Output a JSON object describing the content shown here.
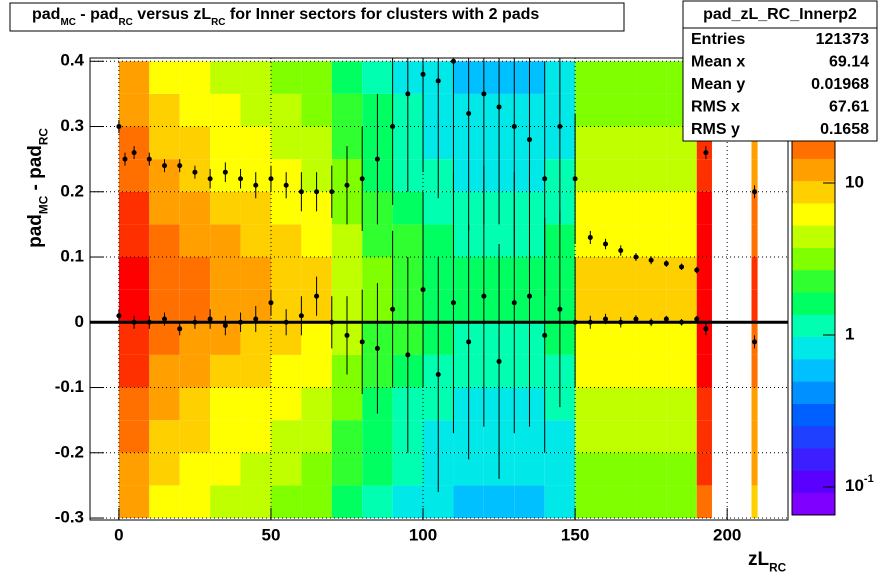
{
  "chart_data": {
    "type": "heatmap2d",
    "title_parts": [
      "pad",
      "MC",
      " - pad",
      "RC",
      " versus zL",
      "RC",
      " for Inner sectors for clusters with 2 pads"
    ],
    "x_label_parts": [
      "zL",
      "RC"
    ],
    "y_label_parts": [
      "pad",
      "MC",
      " - pad",
      "RC"
    ],
    "xlim": [
      -9.5,
      220
    ],
    "ylim": [
      -0.303,
      0.405
    ],
    "xticks": [
      0,
      50,
      100,
      150,
      200
    ],
    "yticks": [
      -0.3,
      -0.2,
      -0.1,
      0,
      0.1,
      0.2,
      0.3,
      0.4
    ],
    "grid": true,
    "hline": 0,
    "zlog": true,
    "zlim": [
      0.0655,
      40
    ],
    "zticks": [
      {
        "value": 0.1,
        "label": "10",
        "exponent": "-1"
      },
      1,
      10
    ],
    "palette": [
      "#8000ff",
      "#5a00ff",
      "#3c1eff",
      "#2040ff",
      "#0060ff",
      "#0090ff",
      "#00c0ff",
      "#00e8e8",
      "#00ffb0",
      "#00ff60",
      "#30ff30",
      "#80ff00",
      "#c0ff00",
      "#ffff00",
      "#ffd000",
      "#ffa000",
      "#ff7000",
      "#ff3000",
      "#ff0000"
    ],
    "x_edges": [
      0,
      10,
      20,
      30,
      40,
      50,
      60,
      70,
      80,
      90,
      100,
      110,
      120,
      130,
      140,
      150,
      160,
      170,
      180,
      190,
      195,
      208,
      210
    ],
    "y_edges": [
      -0.3,
      -0.25,
      -0.2,
      -0.15,
      -0.1,
      -0.05,
      0,
      0.05,
      0.1,
      0.15,
      0.2,
      0.25,
      0.3,
      0.35,
      0.4
    ],
    "z": [
      [
        12,
        14,
        16,
        18,
        22,
        26,
        30,
        30,
        26,
        22,
        18,
        16,
        14,
        12
      ],
      [
        7.2,
        8.4,
        9.6,
        10.8,
        13.2,
        15.6,
        18,
        18,
        15.6,
        13.2,
        10.8,
        9.6,
        8.4,
        7.2
      ],
      [
        6,
        7,
        8,
        9,
        11,
        13,
        15,
        15,
        13,
        11,
        9,
        8,
        7,
        6
      ],
      [
        4.8,
        5.6,
        6.4,
        7.2,
        8.8,
        10.4,
        12,
        12,
        10.4,
        8.8,
        7.2,
        6.4,
        5.6,
        4.8
      ],
      [
        4.2,
        4.9,
        5.6,
        6.3,
        7.7,
        9.1,
        10.5,
        10.5,
        9.1,
        7.7,
        6.3,
        5.6,
        4.9,
        4.2
      ],
      [
        3.6,
        4.2,
        4.8,
        5.4,
        6.6,
        7.8,
        9,
        9,
        7.8,
        6.6,
        5.4,
        4.8,
        4.2,
        3.6
      ],
      [
        3,
        3.5,
        4,
        4.5,
        5.5,
        6.5,
        7.5,
        7.5,
        6.5,
        5.5,
        4.5,
        4,
        3.5,
        3
      ],
      [
        1.8,
        2.1,
        2.4,
        2.7,
        3.3,
        3.9,
        4.5,
        4.5,
        3.9,
        3.3,
        2.7,
        2.4,
        2.1,
        1.8
      ],
      [
        1.2,
        1.4,
        1.6,
        1.8,
        2.2,
        2.6,
        3,
        3,
        2.6,
        2.2,
        1.8,
        1.6,
        1.4,
        1.2
      ],
      [
        0.9,
        1.05,
        1.2,
        1.35,
        1.65,
        1.95,
        2.25,
        2.25,
        1.95,
        1.65,
        1.35,
        1.2,
        1.05,
        0.9
      ],
      [
        0.72,
        0.84,
        0.96,
        1.08,
        1.32,
        1.56,
        1.8,
        1.8,
        1.56,
        1.32,
        1.08,
        0.96,
        0.84,
        0.72
      ],
      [
        0.6,
        0.7,
        0.8,
        0.9,
        1.1,
        1.3,
        1.5,
        1.5,
        1.3,
        1.1,
        0.9,
        0.8,
        0.7,
        0.6
      ],
      [
        0.6,
        0.7,
        0.8,
        0.9,
        1.1,
        1.3,
        1.5,
        1.5,
        1.3,
        1.1,
        0.9,
        0.8,
        0.7,
        0.6
      ],
      [
        0.6,
        0.7,
        0.8,
        0.9,
        1.1,
        1.3,
        1.5,
        1.5,
        1.3,
        1.1,
        0.9,
        0.8,
        0.7,
        0.6
      ],
      [
        0.72,
        0.84,
        0.96,
        1.08,
        1.32,
        1.56,
        1.8,
        1.8,
        1.56,
        1.32,
        1.08,
        0.96,
        0.84,
        0.72
      ],
      [
        3,
        3.5,
        4,
        4.5,
        5.5,
        6.5,
        7.5,
        7.5,
        6.5,
        5.5,
        4.5,
        4,
        3.5,
        3
      ],
      [
        3,
        3.5,
        4,
        4.5,
        5.5,
        6.5,
        7.5,
        7.5,
        6.5,
        5.5,
        4.5,
        4,
        3.5,
        3
      ],
      [
        3,
        3.5,
        4,
        4.5,
        5.5,
        6.5,
        7.5,
        7.5,
        6.5,
        5.5,
        4.5,
        4,
        3.5,
        3
      ],
      [
        3,
        3.5,
        4,
        4.5,
        5.5,
        6.5,
        7.5,
        7.5,
        6.5,
        5.5,
        4.5,
        4,
        3.5,
        3
      ],
      [
        18,
        21,
        24,
        27,
        33,
        39,
        45,
        45,
        39,
        33,
        27,
        24,
        21,
        18
      ],
      [
        null,
        null,
        null,
        null,
        null,
        null,
        null,
        null,
        null,
        null,
        null,
        null,
        null,
        null
      ],
      [
        9,
        10.5,
        12,
        13.5,
        16.5,
        19.5,
        22.5,
        22.5,
        19.5,
        16.5,
        13.5,
        12,
        10.5,
        9
      ]
    ],
    "profiles": [
      {
        "x": [
          0,
          2,
          5,
          10,
          15,
          20,
          25,
          30,
          35,
          40,
          45,
          50,
          55,
          60,
          65,
          70,
          75,
          80,
          85,
          90,
          95,
          100,
          105,
          110,
          115,
          120,
          125,
          130,
          135,
          140,
          145,
          150,
          155,
          160,
          165,
          170,
          175,
          180,
          185,
          190,
          193,
          209
        ],
        "values": [
          0.3,
          0.25,
          0.26,
          0.25,
          0.24,
          0.24,
          0.23,
          0.22,
          0.23,
          0.22,
          0.21,
          0.22,
          0.21,
          0.2,
          0.2,
          0.2,
          0.21,
          0.22,
          0.25,
          0.3,
          0.35,
          0.38,
          0.37,
          0.4,
          0.32,
          0.35,
          0.33,
          0.3,
          0.28,
          0.22,
          0.3,
          0.22,
          0.13,
          0.12,
          0.11,
          0.1,
          0.095,
          0.09,
          0.085,
          0.08,
          0.26,
          0.2
        ],
        "errors": [
          0.01,
          0.01,
          0.01,
          0.01,
          0.01,
          0.01,
          0.01,
          0.015,
          0.015,
          0.015,
          0.02,
          0.02,
          0.02,
          0.03,
          0.03,
          0.04,
          0.06,
          0.08,
          0.1,
          0.12,
          0.15,
          0.15,
          0.18,
          0.2,
          0.18,
          0.2,
          0.18,
          0.2,
          0.2,
          0.18,
          0.15,
          0.1,
          0.01,
          0.008,
          0.008,
          0.006,
          0.006,
          0.005,
          0.005,
          0.005,
          0.01,
          0.01
        ]
      },
      {
        "x": [
          0,
          5,
          10,
          15,
          20,
          25,
          30,
          35,
          40,
          45,
          50,
          55,
          60,
          65,
          70,
          75,
          80,
          85,
          90,
          95,
          100,
          105,
          110,
          115,
          120,
          125,
          130,
          135,
          140,
          145,
          150,
          155,
          160,
          165,
          170,
          175,
          180,
          185,
          190,
          193,
          209
        ],
        "values": [
          0.01,
          0,
          0,
          0.005,
          -0.01,
          0,
          0.005,
          -0.005,
          0,
          0.005,
          0.03,
          0,
          0.01,
          0.04,
          0,
          -0.02,
          -0.03,
          -0.04,
          0.02,
          -0.05,
          0.05,
          -0.08,
          0.03,
          -0.03,
          0.04,
          -0.06,
          0.03,
          0.04,
          -0.02,
          0.02,
          0,
          0,
          0.005,
          0,
          0.005,
          0,
          0.005,
          0,
          0.005,
          -0.01,
          -0.03
        ],
        "errors": [
          0.01,
          0.01,
          0.01,
          0.01,
          0.01,
          0.01,
          0.015,
          0.015,
          0.015,
          0.02,
          0.02,
          0.02,
          0.03,
          0.03,
          0.04,
          0.06,
          0.08,
          0.1,
          0.12,
          0.15,
          0.15,
          0.18,
          0.2,
          0.18,
          0.2,
          0.18,
          0.2,
          0.2,
          0.18,
          0.15,
          0.1,
          0.01,
          0.008,
          0.008,
          0.006,
          0.006,
          0.005,
          0.005,
          0.005,
          0.01,
          0.01
        ]
      }
    ],
    "stats": {
      "name": "pad_zL_RC_Innerp2",
      "rows": [
        [
          "Entries",
          121373
        ],
        [
          "Mean x",
          69.14
        ],
        [
          "Mean y",
          0.01968
        ],
        [
          "RMS x",
          67.61
        ],
        [
          "RMS y",
          0.1658
        ]
      ]
    }
  }
}
